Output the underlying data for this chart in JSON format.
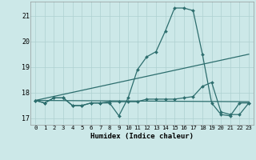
{
  "xlabel": "Humidex (Indice chaleur)",
  "bg_color": "#cce8e8",
  "grid_color": "#aed0d0",
  "line_color": "#2d6e6e",
  "xlim_min": -0.5,
  "xlim_max": 23.5,
  "ylim_min": 16.75,
  "ylim_max": 21.55,
  "yticks": [
    17,
    18,
    19,
    20,
    21
  ],
  "xticks": [
    0,
    1,
    2,
    3,
    4,
    5,
    6,
    7,
    8,
    9,
    10,
    11,
    12,
    13,
    14,
    15,
    16,
    17,
    18,
    19,
    20,
    21,
    22,
    23
  ],
  "flat_line_x": [
    0,
    23
  ],
  "flat_line_y": [
    17.7,
    17.65
  ],
  "trend_line_x": [
    0,
    23
  ],
  "trend_line_y": [
    17.7,
    19.5
  ],
  "lower_series_x": [
    0,
    1,
    2,
    3,
    4,
    5,
    6,
    7,
    8,
    9,
    10,
    11,
    12,
    13,
    14,
    15,
    16,
    17,
    18,
    19,
    20,
    21,
    22,
    23
  ],
  "lower_series_y": [
    17.7,
    17.6,
    17.8,
    17.8,
    17.5,
    17.5,
    17.6,
    17.6,
    17.65,
    17.65,
    17.65,
    17.65,
    17.75,
    17.75,
    17.75,
    17.75,
    17.8,
    17.85,
    18.25,
    18.4,
    17.25,
    17.15,
    17.15,
    17.6
  ],
  "main_series_x": [
    0,
    1,
    2,
    3,
    4,
    5,
    6,
    7,
    8,
    9,
    10,
    11,
    12,
    13,
    14,
    15,
    16,
    17,
    18,
    19,
    20,
    21,
    22,
    23
  ],
  "main_series_y": [
    17.7,
    17.6,
    17.8,
    17.8,
    17.5,
    17.5,
    17.6,
    17.6,
    17.6,
    17.1,
    17.8,
    18.9,
    19.4,
    19.6,
    20.4,
    21.3,
    21.3,
    21.2,
    19.5,
    17.6,
    17.15,
    17.1,
    17.6,
    17.6
  ]
}
